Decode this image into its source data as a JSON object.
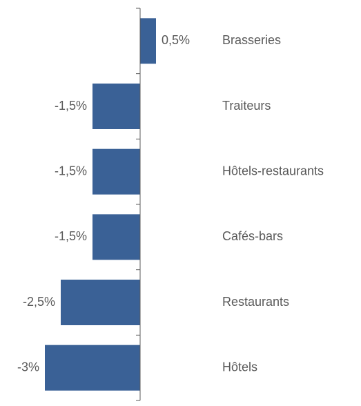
{
  "chart_data": {
    "type": "bar",
    "orientation": "horizontal",
    "categories": [
      "Brasseries",
      "Traiteurs",
      "Hôtels-restaurants",
      "Cafés-bars",
      "Restaurants",
      "Hôtels"
    ],
    "values": [
      0.5,
      -1.5,
      -1.5,
      -1.5,
      -2.5,
      -3
    ],
    "value_labels": [
      "0,5%",
      "-1,5%",
      "-1,5%",
      "-1,5%",
      "-2,5%",
      "-3%"
    ],
    "color": "#3a6196"
  }
}
